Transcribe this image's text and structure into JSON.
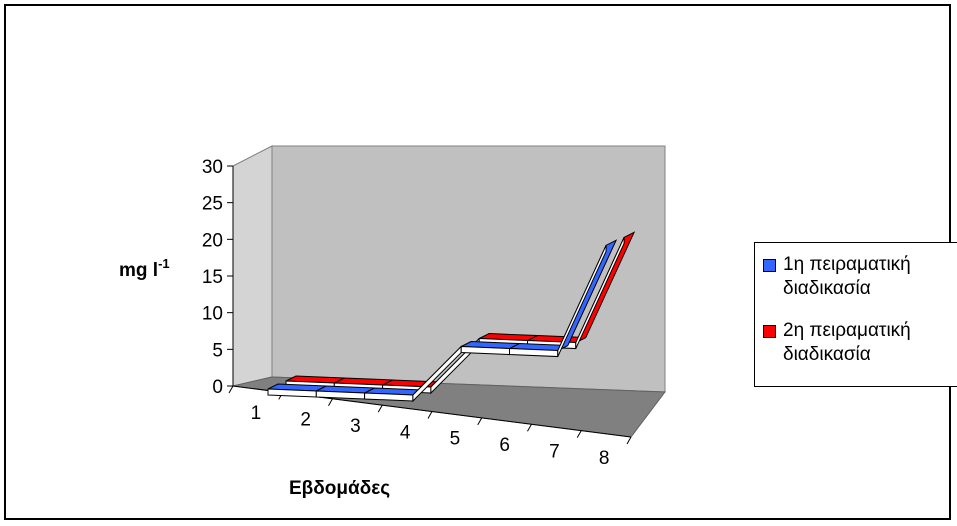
{
  "chart_data": {
    "type": "line",
    "categories": [
      "1",
      "2",
      "3",
      "4",
      "5",
      "6",
      "7",
      "8"
    ],
    "series": [
      {
        "name": "1η πειραματική διαδικασία",
        "values": [
          0,
          0,
          0,
          0,
          8,
          8,
          8,
          25
        ],
        "color": "#3366FF"
      },
      {
        "name": "2η πειραματική διαδικασία",
        "values": [
          0,
          0,
          0,
          0,
          8,
          8,
          8,
          25
        ],
        "color": "#FF0000"
      }
    ],
    "yticks": [
      "0",
      "5",
      "10",
      "15",
      "20",
      "25",
      "30"
    ],
    "ylim": [
      0,
      30
    ],
    "ylabel_main": "mg l",
    "ylabel_sup": "-1",
    "xlabel": "Εβδομάδες",
    "grid": false,
    "legend_position": "right",
    "style": "3d"
  }
}
